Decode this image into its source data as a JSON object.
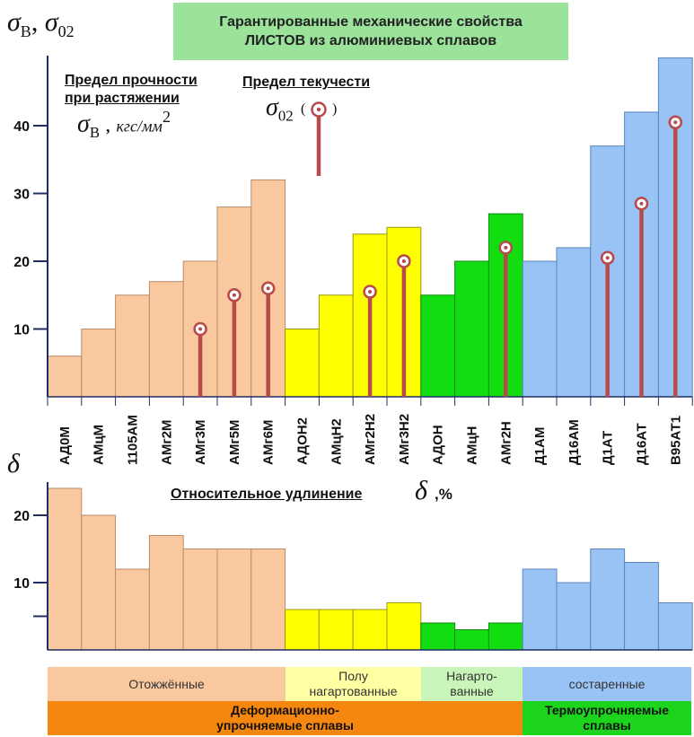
{
  "title": {
    "line1": "Гарантированные механические свойства",
    "line2": "ЛИСТОВ из алюминиевых сплавов"
  },
  "top_chart": {
    "corner_symbol_main": "σ",
    "corner_symbol_main_sub": "B",
    "corner_symbol_sep": ",",
    "corner_symbol_second": "σ",
    "corner_symbol_second_sub": "02",
    "strength_label_line1": "Предел прочности",
    "strength_label_line2": "при растяжении",
    "strength_symbol": "σ",
    "strength_symbol_sub": "B",
    "strength_unit_prefix": ",",
    "strength_unit": "кгс/мм",
    "strength_unit_sup": "2",
    "yield_label": "Предел текучести",
    "yield_symbol": "σ",
    "yield_symbol_sub": "02",
    "yield_paren_open": "(",
    "yield_paren_close": ")"
  },
  "bottom_chart": {
    "corner_symbol": "δ",
    "label": "Относительное удлинение",
    "label_symbol": "δ",
    "label_unit": ",%"
  },
  "groups": {
    "annealed": "Отожжённые",
    "semi_hardened_line1": "Полу",
    "semi_hardened_line2": "нагартованные",
    "hardened_line1": "Нагарто-",
    "hardened_line2": "ванные",
    "aged": "состаренные",
    "deformable_line1": "Деформационно-",
    "deformable_line2": "упрочняемые сплавы",
    "heat_line1": "Термоупрочняемые",
    "heat_line2": "сплавы"
  },
  "colors": {
    "annealed": "#f9c89e",
    "semi_hardened": "#ffff00",
    "hardened": "#11dd11",
    "aged": "#99c3f5",
    "deformable_band": "#f5860f",
    "heat_band": "#1dd41d",
    "yield_marker": "#b74a4a",
    "title_bg": "#9be29a"
  },
  "chart_data": [
    {
      "type": "bar",
      "categories": [
        "АД0М",
        "АМцМ",
        "1105АМ",
        "АМг2М",
        "АМг3М",
        "АМг5М",
        "АМг6М",
        "АДОН2",
        "АМцН2",
        "АМг2Н2",
        "АМг3Н2",
        "АДОН",
        "АМцН",
        "АМг2Н",
        "Д1АМ",
        "Д16АМ",
        "Д1АТ",
        "Д16АТ",
        "В95АТ1"
      ],
      "series": [
        {
          "name": "Предел прочности при растяжении",
          "values": [
            6,
            10,
            15,
            17,
            20,
            28,
            32,
            10,
            15,
            24,
            25,
            15,
            20,
            27,
            20,
            22,
            37,
            42,
            50
          ]
        },
        {
          "name": "Предел текучести",
          "values": [
            null,
            null,
            null,
            null,
            10,
            15,
            16,
            null,
            null,
            15.5,
            20,
            null,
            null,
            22,
            null,
            null,
            20.5,
            28.5,
            40.5
          ]
        }
      ],
      "ylim": [
        0,
        50
      ],
      "yticks": [
        10,
        20,
        30,
        40
      ],
      "xlabel": "",
      "ylabel": ""
    },
    {
      "type": "bar",
      "categories": [
        "АД0М",
        "АМцМ",
        "1105АМ",
        "АМг2М",
        "АМг3М",
        "АМг5М",
        "АМг6М",
        "АДОН2",
        "АМцН2",
        "АМг2Н2",
        "АМг3Н2",
        "АДОН",
        "АМцН",
        "АМг2Н",
        "Д1АМ",
        "Д16АМ",
        "Д1АТ",
        "Д16АТ",
        "В95АТ1"
      ],
      "series": [
        {
          "name": "Относительное удлинение",
          "values": [
            24,
            20,
            12,
            17,
            15,
            15,
            15,
            6,
            6,
            6,
            7,
            4,
            3,
            4,
            12,
            10,
            15,
            13,
            7
          ]
        }
      ],
      "ylim": [
        0,
        25
      ],
      "yticks": [
        10,
        20
      ],
      "xlabel": "",
      "ylabel": ""
    }
  ]
}
